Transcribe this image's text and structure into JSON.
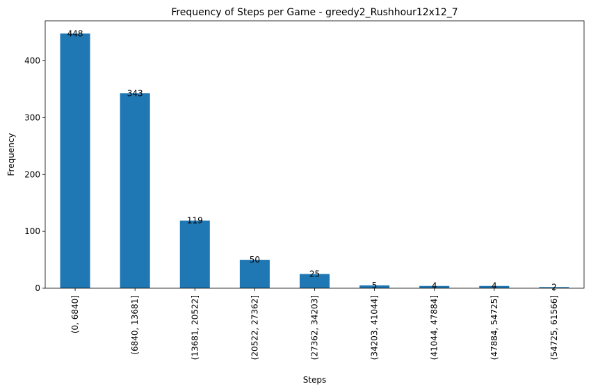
{
  "chart_data": {
    "type": "bar",
    "title": "Frequency of Steps per Game - greedy2_Rushhour12x12_7",
    "xlabel": "Steps",
    "ylabel": "Frequency",
    "categories": [
      "(0, 6840]",
      "(6840, 13681]",
      "(13681, 20522]",
      "(20522, 27362]",
      "(27362, 34203]",
      "(34203, 41044]",
      "(41044, 47884]",
      "(47884, 54725]",
      "(54725, 61566]"
    ],
    "values": [
      448,
      343,
      119,
      50,
      25,
      5,
      4,
      4,
      2
    ],
    "data_labels": [
      "448",
      "343",
      "119",
      "50",
      "25",
      "5",
      "4",
      "4",
      "2"
    ],
    "ylim": [
      0,
      470.4
    ],
    "yticks": [
      0,
      100,
      200,
      300,
      400
    ],
    "ytick_labels": [
      "0",
      "100",
      "200",
      "300",
      "400"
    ],
    "grid": false,
    "bar_color": "#1f77b4"
  }
}
